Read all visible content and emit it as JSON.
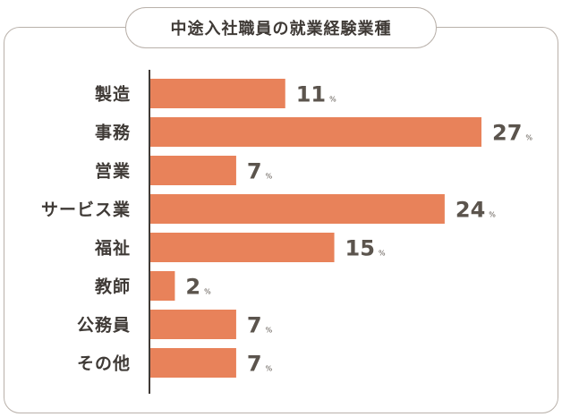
{
  "chart_data": {
    "type": "bar",
    "orientation": "horizontal",
    "title": "中途入社職員の就業経験業種",
    "unit": "%",
    "categories": [
      "製造",
      "事務",
      "営業",
      "サービス業",
      "福祉",
      "教師",
      "公務員",
      "その他"
    ],
    "values": [
      11,
      27,
      7,
      24,
      15,
      2,
      7,
      7
    ],
    "bar_color": "#e8825a",
    "axis_color": "#3f3a36",
    "xlim": [
      0,
      27
    ]
  }
}
